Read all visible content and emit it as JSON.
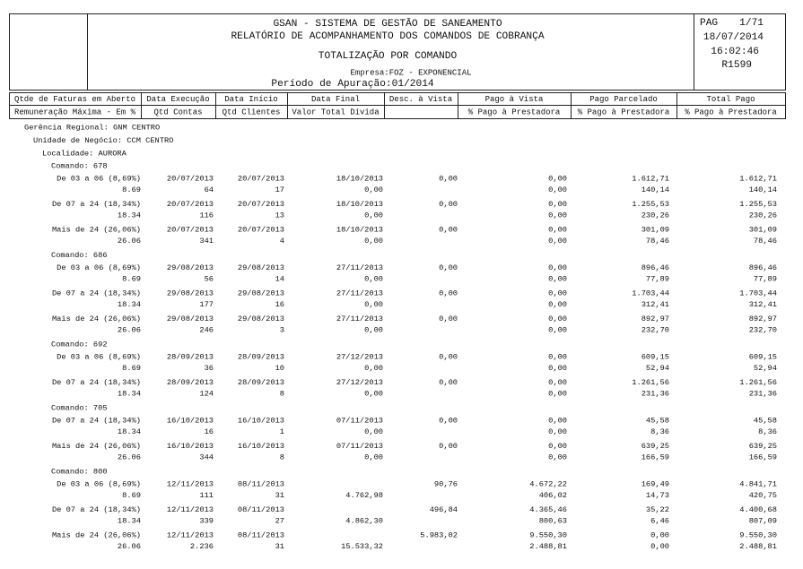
{
  "header": {
    "lines": [
      "GSAN - SISTEMA DE GESTÃO DE SANEAMENTO",
      "RELATÓRIO DE ACOMPANHAMENTO DOS COMANDOS DE COBRANÇA",
      "TOTALIZAÇÃO POR COMANDO",
      "Empresa:FOZ - EXPONENCIAL",
      "Período de Apuração:01/2014"
    ],
    "page_label": "PAG",
    "page": "1/71",
    "date": "18/07/2014",
    "time": "16:02:46",
    "report": "R1599"
  },
  "columns": {
    "row1": [
      "Qtde de Faturas em Aberto",
      "Data Execução",
      "Data Início",
      "Data Final",
      "Desc. à Vista",
      "Pago à Vista",
      "Pago Parcelado",
      "Total Pago"
    ],
    "row2": [
      "Remuneração Máxima - Em %",
      "Qtd Contas",
      "Qtd Clientes",
      "Valor Total Dívida",
      null,
      "% Pago à Prestadora",
      "% Pago à Prestadora",
      "% Pago à Prestadora"
    ]
  },
  "levels": [
    "Gerência Regional: GNM CENTRO",
    "Unidade de Negócio: CCM CENTRO",
    "Localidade: AURORA"
  ],
  "groups": [
    {
      "title": "Comando: 678",
      "rows": [
        {
          "line1": [
            "De 03 a 06 (8,69%)",
            "20/07/2013",
            "20/07/2013",
            "18/10/2013",
            "0,00",
            "0,00",
            "1.612,71",
            "1.612,71"
          ],
          "line2": [
            "8.69",
            "64",
            "17",
            "0,00",
            null,
            "0,00",
            "140,14",
            "140,14"
          ]
        },
        {
          "line1": [
            "De 07 a 24 (18,34%)",
            "20/07/2013",
            "20/07/2013",
            "18/10/2013",
            "0,00",
            "0,00",
            "1.255,53",
            "1.255,53"
          ],
          "line2": [
            "18.34",
            "116",
            "13",
            "0,00",
            null,
            "0,00",
            "230,26",
            "230,26"
          ]
        },
        {
          "line1": [
            "Mais de 24 (26,06%)",
            "20/07/2013",
            "20/07/2013",
            "18/10/2013",
            "0,00",
            "0,00",
            "301,09",
            "301,09"
          ],
          "line2": [
            "26.06",
            "341",
            "4",
            "0,00",
            null,
            "0,00",
            "78,46",
            "78,46"
          ]
        }
      ]
    },
    {
      "title": "Comando: 686",
      "rows": [
        {
          "line1": [
            "De 03 a 06 (8,69%)",
            "29/08/2013",
            "29/08/2013",
            "27/11/2013",
            "0,00",
            "0,00",
            "896,46",
            "896,46"
          ],
          "line2": [
            "8.69",
            "56",
            "14",
            "0,00",
            null,
            "0,00",
            "77,89",
            "77,89"
          ]
        },
        {
          "line1": [
            "De 07 a 24 (18,34%)",
            "29/08/2013",
            "29/08/2013",
            "27/11/2013",
            "0,00",
            "0,00",
            "1.703,44",
            "1.703,44"
          ],
          "line2": [
            "18.34",
            "177",
            "16",
            "0,00",
            null,
            "0,00",
            "312,41",
            "312,41"
          ]
        },
        {
          "line1": [
            "Mais de 24 (26,06%)",
            "29/08/2013",
            "29/08/2013",
            "27/11/2013",
            "0,00",
            "0,00",
            "892,97",
            "892,97"
          ],
          "line2": [
            "26.06",
            "246",
            "3",
            "0,00",
            null,
            "0,00",
            "232,70",
            "232,70"
          ]
        }
      ]
    },
    {
      "title": "Comando: 692",
      "rows": [
        {
          "line1": [
            "De 03 a 06 (8,69%)",
            "28/09/2013",
            "28/09/2013",
            "27/12/2013",
            "0,00",
            "0,00",
            "609,15",
            "609,15"
          ],
          "line2": [
            "8.69",
            "36",
            "10",
            "0,00",
            null,
            "0,00",
            "52,94",
            "52,94"
          ]
        },
        {
          "line1": [
            "De 07 a 24 (18,34%)",
            "28/09/2013",
            "28/09/2013",
            "27/12/2013",
            "0,00",
            "0,00",
            "1.261,56",
            "1.261,56"
          ],
          "line2": [
            "18.34",
            "124",
            "8",
            "0,00",
            null,
            "0,00",
            "231,36",
            "231,36"
          ]
        }
      ]
    },
    {
      "title": "Comando: 705",
      "rows": [
        {
          "line1": [
            "De 07 a 24 (18,34%)",
            "16/10/2013",
            "16/10/2013",
            "07/11/2013",
            "0,00",
            "0,00",
            "45,58",
            "45,58"
          ],
          "line2": [
            "18.34",
            "16",
            "1",
            "0,00",
            null,
            "0,00",
            "8,36",
            "8,36"
          ]
        },
        {
          "line1": [
            "Mais de 24 (26,06%)",
            "16/10/2013",
            "16/10/2013",
            "07/11/2013",
            "0,00",
            "0,00",
            "639,25",
            "639,25"
          ],
          "line2": [
            "26.06",
            "344",
            "8",
            "0,00",
            null,
            "0,00",
            "166,59",
            "166,59"
          ]
        }
      ]
    },
    {
      "title": "Comando: 800",
      "rows": [
        {
          "line1": [
            "De 03 a 06 (8,69%)",
            "12/11/2013",
            "08/11/2013",
            null,
            "90,76",
            "4.672,22",
            "169,49",
            "4.841,71"
          ],
          "line2": [
            "8.69",
            "111",
            "31",
            "4.762,98",
            null,
            "406,02",
            "14,73",
            "420,75"
          ]
        },
        {
          "line1": [
            "De 07 a 24 (18,34%)",
            "12/11/2013",
            "08/11/2013",
            null,
            "496,84",
            "4.365,46",
            "35,22",
            "4.400,68"
          ],
          "line2": [
            "18.34",
            "339",
            "27",
            "4.862,30",
            null,
            "800,63",
            "6,46",
            "807,09"
          ]
        },
        {
          "line1": [
            "Mais de 24 (26,06%)",
            "12/11/2013",
            "08/11/2013",
            null,
            "5.983,02",
            "9.550,30",
            "0,00",
            "9.550,30"
          ],
          "line2": [
            "26.06",
            "2.236",
            "31",
            "15.533,32",
            null,
            "2.488,81",
            "0,00",
            "2.488,81"
          ]
        }
      ]
    }
  ]
}
